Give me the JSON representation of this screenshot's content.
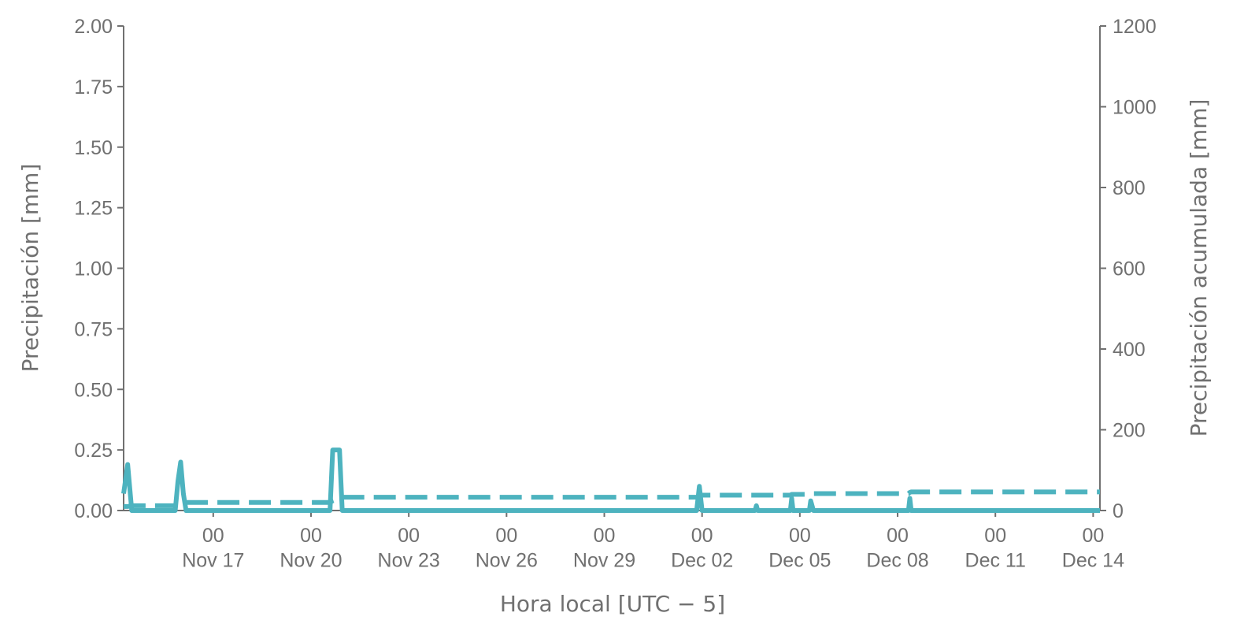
{
  "chart_data": {
    "type": "line",
    "x_label": "Hora local [UTC − 5]",
    "y_label": "Precipitación [mm]",
    "y2_label": "Precipitación acumulada [mm]",
    "x": [
      "Nov 14 06:00",
      "Nov 14 09:00",
      "Nov 14 12:00",
      "Nov 15 20:00",
      "Nov 15 22:00",
      "Nov 16 00:00",
      "Nov 16 02:00",
      "Nov 16 04:00",
      "Nov 20 14:00",
      "Nov 20 16:00",
      "Nov 20 21:00",
      "Nov 20 23:00",
      "Dec 01 20:00",
      "Dec 01 22:00",
      "Dec 02 00:00",
      "Dec 03 15:00",
      "Dec 03 16:00",
      "Dec 03 17:00",
      "Dec 04 17:00",
      "Dec 04 18:00",
      "Dec 04 19:00",
      "Dec 05 07:00",
      "Dec 05 08:00",
      "Dec 05 10:00",
      "Dec 08 08:00",
      "Dec 08 09:00",
      "Dec 08 10:00",
      "Dec 14 05:00"
    ],
    "xlim": [
      "Nov 14 06:00",
      "Dec 14 05:00"
    ],
    "xticks": [
      {
        "value": "Nov 17 00:00",
        "label": "00\nNov 17"
      },
      {
        "value": "Nov 20 00:00",
        "label": "00\nNov 20"
      },
      {
        "value": "Nov 23 00:00",
        "label": "00\nNov 23"
      },
      {
        "value": "Nov 26 00:00",
        "label": "00\nNov 26"
      },
      {
        "value": "Nov 29 00:00",
        "label": "00\nNov 29"
      },
      {
        "value": "Dec 02 00:00",
        "label": "00\nDec 02"
      },
      {
        "value": "Dec 05 00:00",
        "label": "00\nDec 05"
      },
      {
        "value": "Dec 08 00:00",
        "label": "00\nDec 08"
      },
      {
        "value": "Dec 11 00:00",
        "label": "00\nDec 11"
      },
      {
        "value": "Dec 14 00:00",
        "label": "00\nDec 14"
      }
    ],
    "ylim": [
      0,
      2
    ],
    "yticks": [
      {
        "value": 0,
        "label": "0.00"
      },
      {
        "value": 0.25,
        "label": "0.25"
      },
      {
        "value": 0.5,
        "label": "0.50"
      },
      {
        "value": 0.75,
        "label": "0.75"
      },
      {
        "value": 1,
        "label": "1.00"
      },
      {
        "value": 1.25,
        "label": "1.25"
      },
      {
        "value": 1.5,
        "label": "1.50"
      },
      {
        "value": 1.75,
        "label": "1.75"
      },
      {
        "value": 2,
        "label": "2.00"
      }
    ],
    "y2lim": [
      0,
      1200
    ],
    "y2ticks": [
      0,
      200,
      400,
      600,
      800,
      1000,
      1200
    ],
    "series": [
      {
        "color": "#4db3bf",
        "dash": false,
        "values": [
          0.07,
          0.19,
          0,
          0,
          0.12,
          0.2,
          0.07,
          0,
          0,
          0.25,
          0.25,
          0,
          0,
          0.1,
          0,
          0,
          0.02,
          0,
          0,
          0.05,
          0,
          0,
          0.04,
          0,
          0,
          0.05,
          0,
          0
        ]
      },
      {
        "color": "#4db3bf",
        "dash": true,
        "axis": "y2",
        "values": [
          10,
          10,
          12,
          12,
          14,
          17,
          20,
          20,
          20,
          24,
          30,
          33,
          33,
          36,
          38,
          38,
          38,
          38,
          38,
          40,
          40,
          40,
          41,
          42,
          42,
          45,
          46,
          46
        ]
      }
    ]
  }
}
